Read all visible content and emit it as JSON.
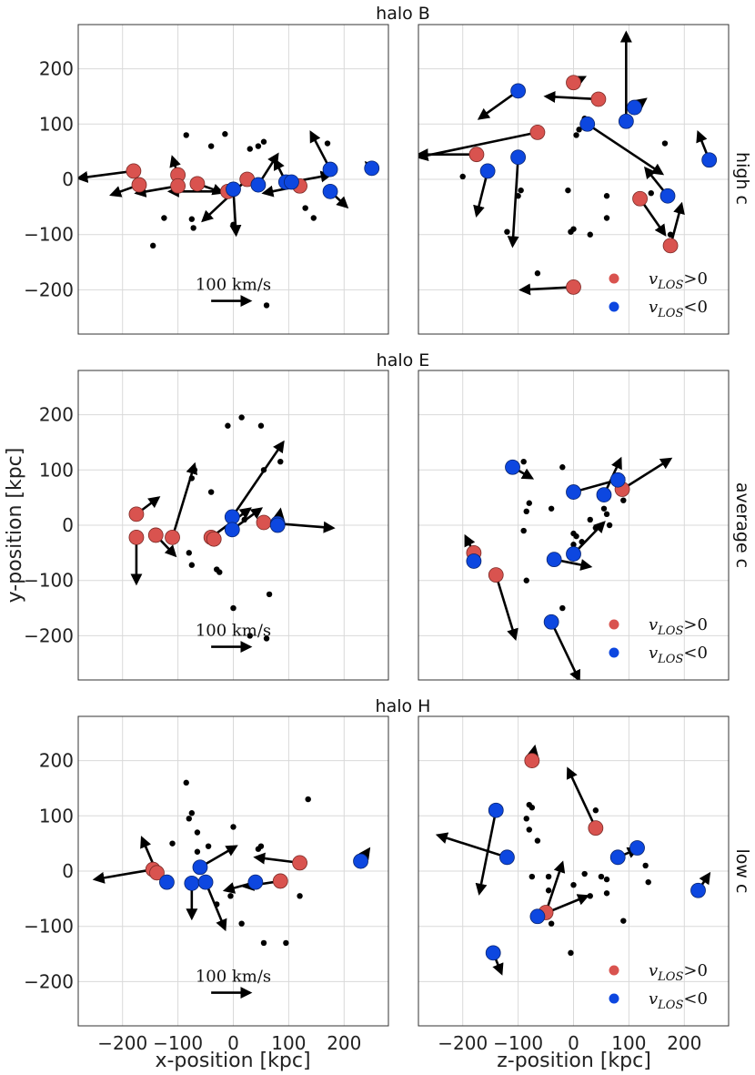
{
  "colors": {
    "receding": "#d9534f",
    "approaching": "#0d47e0",
    "grid": "#d9d9d9",
    "frame": "#333333"
  },
  "labels": {
    "x_left": "x-position [kpc]",
    "x_right": "z-position [kpc]",
    "y": "y-position [kpc]",
    "scale": "100 km/s",
    "legend_pos": "v_LOS>0",
    "legend_neg": "v_LOS<0",
    "legend_pos_main": "v",
    "legend_pos_sub": "LOS",
    "legend_pos_tail": ">0",
    "legend_neg_main": "v",
    "legend_neg_sub": "LOS",
    "legend_neg_tail": "<0"
  },
  "chart_data": [
    {
      "type": "scatter",
      "row": 0,
      "col": 0,
      "title": "halo B",
      "row_label": "high c",
      "xlabel": "x-position [kpc]",
      "ylabel": "y-position [kpc]",
      "xlim": [
        -280,
        280
      ],
      "ylim": [
        -280,
        280
      ],
      "xticks": [
        -200,
        -100,
        0,
        100,
        200
      ],
      "yticks": [
        -200,
        -100,
        0,
        100,
        200
      ],
      "scale_arrow": "100 km/s",
      "dots": [
        [
          -145,
          -120
        ],
        [
          -125,
          -70
        ],
        [
          -85,
          80
        ],
        [
          -75,
          -72
        ],
        [
          -72,
          -88
        ],
        [
          -40,
          60
        ],
        [
          -15,
          82
        ],
        [
          0,
          -82
        ],
        [
          30,
          55
        ],
        [
          45,
          60
        ],
        [
          55,
          68
        ],
        [
          60,
          -228
        ],
        [
          130,
          -52
        ],
        [
          145,
          -70
        ],
        [
          170,
          65
        ]
      ],
      "red": [
        [
          -180,
          15
        ],
        [
          -170,
          -10
        ],
        [
          -100,
          8
        ],
        [
          -100,
          -12
        ],
        [
          -65,
          -8
        ],
        [
          -10,
          -22
        ],
        [
          25,
          0
        ],
        [
          120,
          -12
        ]
      ],
      "blue": [
        [
          0,
          -18
        ],
        [
          45,
          -10
        ],
        [
          95,
          -5
        ],
        [
          105,
          -5
        ],
        [
          175,
          18
        ],
        [
          175,
          -22
        ],
        [
          250,
          20
        ]
      ],
      "arrows": [
        [
          -180,
          15,
          -280,
          2
        ],
        [
          -170,
          -10,
          -220,
          -28
        ],
        [
          -100,
          8,
          -110,
          40
        ],
        [
          -100,
          -12,
          -175,
          -25
        ],
        [
          -65,
          -8,
          -20,
          -24
        ],
        [
          -10,
          -22,
          -115,
          -22
        ],
        [
          25,
          0,
          -55,
          -75
        ],
        [
          120,
          -12,
          55,
          -25
        ],
        [
          0,
          -18,
          5,
          -100
        ],
        [
          45,
          -10,
          80,
          45
        ],
        [
          95,
          -5,
          75,
          35
        ],
        [
          105,
          -5,
          175,
          8
        ],
        [
          175,
          18,
          140,
          85
        ],
        [
          175,
          -22,
          205,
          -50
        ],
        [
          250,
          20,
          240,
          30
        ]
      ]
    },
    {
      "type": "scatter",
      "row": 0,
      "col": 1,
      "title": "",
      "row_label": "high c",
      "xlabel": "z-position [kpc]",
      "ylabel": "",
      "xlim": [
        -280,
        280
      ],
      "ylim": [
        -280,
        280
      ],
      "xticks": [
        -200,
        -100,
        0,
        100,
        200
      ],
      "yticks": [],
      "dots": [
        [
          -160,
          15
        ],
        [
          -120,
          -95
        ],
        [
          -100,
          -30
        ],
        [
          -95,
          -20
        ],
        [
          -65,
          -170
        ],
        [
          -10,
          -20
        ],
        [
          -5,
          -95
        ],
        [
          0,
          -90
        ],
        [
          5,
          80
        ],
        [
          10,
          90
        ],
        [
          20,
          110
        ],
        [
          30,
          -100
        ],
        [
          60,
          -30
        ],
        [
          60,
          -70
        ],
        [
          140,
          -25
        ],
        [
          165,
          65
        ],
        [
          175,
          -100
        ],
        [
          -200,
          5
        ]
      ],
      "red": [
        [
          -175,
          45
        ],
        [
          -65,
          85
        ],
        [
          0,
          175
        ],
        [
          45,
          145
        ],
        [
          120,
          -35
        ],
        [
          175,
          -120
        ],
        [
          0,
          -195
        ]
      ],
      "blue": [
        [
          -155,
          15
        ],
        [
          -100,
          160
        ],
        [
          -100,
          40
        ],
        [
          25,
          100
        ],
        [
          95,
          105
        ],
        [
          110,
          130
        ],
        [
          170,
          -30
        ],
        [
          245,
          35
        ]
      ],
      "arrows": [
        [
          -175,
          45,
          -280,
          45
        ],
        [
          -65,
          85,
          -280,
          40
        ],
        [
          0,
          175,
          20,
          185
        ],
        [
          45,
          145,
          -50,
          150
        ],
        [
          120,
          -35,
          165,
          -100
        ],
        [
          175,
          -120,
          195,
          -45
        ],
        [
          0,
          -195,
          -95,
          -200
        ],
        [
          -155,
          15,
          -175,
          -65
        ],
        [
          -100,
          160,
          -170,
          110
        ],
        [
          -100,
          40,
          -110,
          -120
        ],
        [
          25,
          100,
          160,
          10
        ],
        [
          95,
          105,
          95,
          265
        ],
        [
          110,
          130,
          130,
          145
        ],
        [
          170,
          -30,
          130,
          20
        ],
        [
          245,
          35,
          225,
          85
        ]
      ]
    },
    {
      "type": "scatter",
      "row": 1,
      "col": 0,
      "title": "halo E",
      "row_label": "average c",
      "xlabel": "x-position [kpc]",
      "ylabel": "y-position [kpc]",
      "xlim": [
        -280,
        280
      ],
      "ylim": [
        -280,
        280
      ],
      "xticks": [
        -200,
        -100,
        0,
        100,
        200
      ],
      "yticks": [
        -200,
        -100,
        0,
        100,
        200
      ],
      "scale_arrow": "100 km/s",
      "dots": [
        [
          -75,
          -72
        ],
        [
          -80,
          -50
        ],
        [
          -75,
          85
        ],
        [
          -70,
          100
        ],
        [
          -40,
          60
        ],
        [
          -25,
          -85
        ],
        [
          -10,
          180
        ],
        [
          15,
          195
        ],
        [
          -30,
          -80
        ],
        [
          0,
          -150
        ],
        [
          20,
          10
        ],
        [
          30,
          -200
        ],
        [
          50,
          180
        ],
        [
          55,
          100
        ],
        [
          60,
          -205
        ],
        [
          65,
          -125
        ],
        [
          85,
          115
        ]
      ],
      "red": [
        [
          -175,
          20
        ],
        [
          -175,
          -22
        ],
        [
          -140,
          -18
        ],
        [
          -110,
          -22
        ],
        [
          -40,
          -22
        ],
        [
          -35,
          -25
        ],
        [
          55,
          5
        ]
      ],
      "blue": [
        [
          -2,
          15
        ],
        [
          -2,
          -8
        ],
        [
          80,
          3
        ],
        [
          80,
          0
        ]
      ],
      "arrows": [
        [
          -175,
          20,
          -135,
          50
        ],
        [
          -175,
          -22,
          -175,
          -105
        ],
        [
          -140,
          -18,
          -105,
          -55
        ],
        [
          -110,
          -22,
          -70,
          110
        ],
        [
          -40,
          -22,
          30,
          30
        ],
        [
          -2,
          15,
          90,
          150
        ],
        [
          -2,
          -8,
          50,
          30
        ],
        [
          80,
          3,
          180,
          -5
        ],
        [
          80,
          0,
          85,
          28
        ]
      ]
    },
    {
      "type": "scatter",
      "row": 1,
      "col": 1,
      "title": "",
      "row_label": "average c",
      "xlabel": "z-position [kpc]",
      "ylabel": "",
      "xlim": [
        -280,
        280
      ],
      "ylim": [
        -280,
        280
      ],
      "xticks": [
        -200,
        -100,
        0,
        100,
        200
      ],
      "yticks": [],
      "dots": [
        [
          -90,
          115
        ],
        [
          -80,
          40
        ],
        [
          -85,
          25
        ],
        [
          -90,
          -10
        ],
        [
          -85,
          -100
        ],
        [
          -40,
          30
        ],
        [
          -20,
          105
        ],
        [
          0,
          -35
        ],
        [
          0,
          -15
        ],
        [
          5,
          -20
        ],
        [
          15,
          -30
        ],
        [
          30,
          10
        ],
        [
          40,
          -5
        ],
        [
          55,
          30
        ],
        [
          60,
          20
        ],
        [
          65,
          0
        ],
        [
          90,
          45
        ],
        [
          -20,
          -150
        ]
      ],
      "red": [
        [
          -180,
          -50
        ],
        [
          -140,
          -90
        ],
        [
          88,
          65
        ]
      ],
      "blue": [
        [
          -180,
          -65
        ],
        [
          -110,
          105
        ],
        [
          -35,
          -62
        ],
        [
          0,
          60
        ],
        [
          0,
          -52
        ],
        [
          55,
          55
        ],
        [
          80,
          82
        ],
        [
          -40,
          -175
        ]
      ],
      "arrows": [
        [
          -180,
          -50,
          -195,
          -20
        ],
        [
          -140,
          -90,
          -105,
          -205
        ],
        [
          88,
          65,
          175,
          120
        ],
        [
          -110,
          105,
          -75,
          85
        ],
        [
          -35,
          -62,
          30,
          -75
        ],
        [
          0,
          60,
          90,
          85
        ],
        [
          0,
          -52,
          55,
          5
        ],
        [
          55,
          55,
          85,
          120
        ],
        [
          -40,
          -175,
          10,
          -280
        ]
      ]
    },
    {
      "type": "scatter",
      "row": 2,
      "col": 0,
      "title": "halo H",
      "row_label": "low c",
      "xlabel": "x-position [kpc]",
      "ylabel": "y-position [kpc]",
      "xlim": [
        -280,
        280
      ],
      "ylim": [
        -280,
        280
      ],
      "xticks": [
        -200,
        -100,
        0,
        100,
        200
      ],
      "yticks": [
        -200,
        -100,
        0,
        100,
        200
      ],
      "scale_arrow": "100 km/s",
      "dots": [
        [
          -110,
          50
        ],
        [
          -85,
          160
        ],
        [
          -80,
          95
        ],
        [
          -75,
          105
        ],
        [
          -65,
          70
        ],
        [
          -65,
          35
        ],
        [
          -45,
          45
        ],
        [
          -30,
          -60
        ],
        [
          -5,
          -45
        ],
        [
          0,
          80
        ],
        [
          15,
          -95
        ],
        [
          45,
          40
        ],
        [
          50,
          45
        ],
        [
          55,
          -130
        ],
        [
          95,
          -130
        ],
        [
          120,
          -45
        ],
        [
          135,
          130
        ]
      ],
      "red": [
        [
          -145,
          3
        ],
        [
          -138,
          -3
        ],
        [
          85,
          -18
        ],
        [
          120,
          15
        ]
      ],
      "blue": [
        [
          -120,
          -20
        ],
        [
          -75,
          -22
        ],
        [
          -60,
          7
        ],
        [
          -50,
          -20
        ],
        [
          40,
          -20
        ],
        [
          230,
          18
        ]
      ],
      "arrows": [
        [
          -145,
          3,
          -250,
          -15
        ],
        [
          -138,
          -3,
          -165,
          60
        ],
        [
          85,
          -18,
          20,
          -28
        ],
        [
          120,
          15,
          40,
          25
        ],
        [
          -120,
          -20,
          -120,
          -20
        ],
        [
          -75,
          -22,
          -75,
          -85
        ],
        [
          -60,
          7,
          5,
          45
        ],
        [
          -50,
          -20,
          -15,
          -105
        ],
        [
          40,
          -20,
          -15,
          -35
        ],
        [
          230,
          18,
          245,
          40
        ]
      ]
    },
    {
      "type": "scatter",
      "row": 2,
      "col": 1,
      "title": "",
      "row_label": "low c",
      "xlabel": "z-position [kpc]",
      "ylabel": "",
      "xlim": [
        -280,
        280
      ],
      "ylim": [
        -280,
        280
      ],
      "xticks": [
        -200,
        -100,
        0,
        100,
        200
      ],
      "yticks": [],
      "dots": [
        [
          -80,
          120
        ],
        [
          -75,
          115
        ],
        [
          -85,
          95
        ],
        [
          -80,
          75
        ],
        [
          -75,
          -10
        ],
        [
          -65,
          55
        ],
        [
          -45,
          -35
        ],
        [
          -45,
          -10
        ],
        [
          -40,
          -95
        ],
        [
          -5,
          -148
        ],
        [
          0,
          -25
        ],
        [
          20,
          -5
        ],
        [
          30,
          -45
        ],
        [
          40,
          110
        ],
        [
          50,
          -10
        ],
        [
          60,
          -15
        ],
        [
          60,
          -40
        ],
        [
          90,
          -90
        ],
        [
          130,
          10
        ],
        [
          135,
          -20
        ]
      ],
      "red": [
        [
          -75,
          200
        ],
        [
          40,
          78
        ],
        [
          -50,
          -75
        ]
      ],
      "blue": [
        [
          -140,
          110
        ],
        [
          -120,
          25
        ],
        [
          -65,
          -82
        ],
        [
          80,
          25
        ],
        [
          115,
          42
        ],
        [
          -145,
          -148
        ],
        [
          225,
          -35
        ]
      ],
      "arrows": [
        [
          -75,
          200,
          -70,
          225
        ],
        [
          40,
          78,
          -10,
          185
        ],
        [
          -50,
          -75,
          -20,
          15
        ],
        [
          -140,
          110,
          -170,
          -40
        ],
        [
          -120,
          25,
          -245,
          65
        ],
        [
          -65,
          -82,
          25,
          -45
        ],
        [
          80,
          25,
          115,
          40
        ],
        [
          -145,
          -148,
          -130,
          -185
        ],
        [
          225,
          -35,
          245,
          -5
        ]
      ]
    }
  ]
}
